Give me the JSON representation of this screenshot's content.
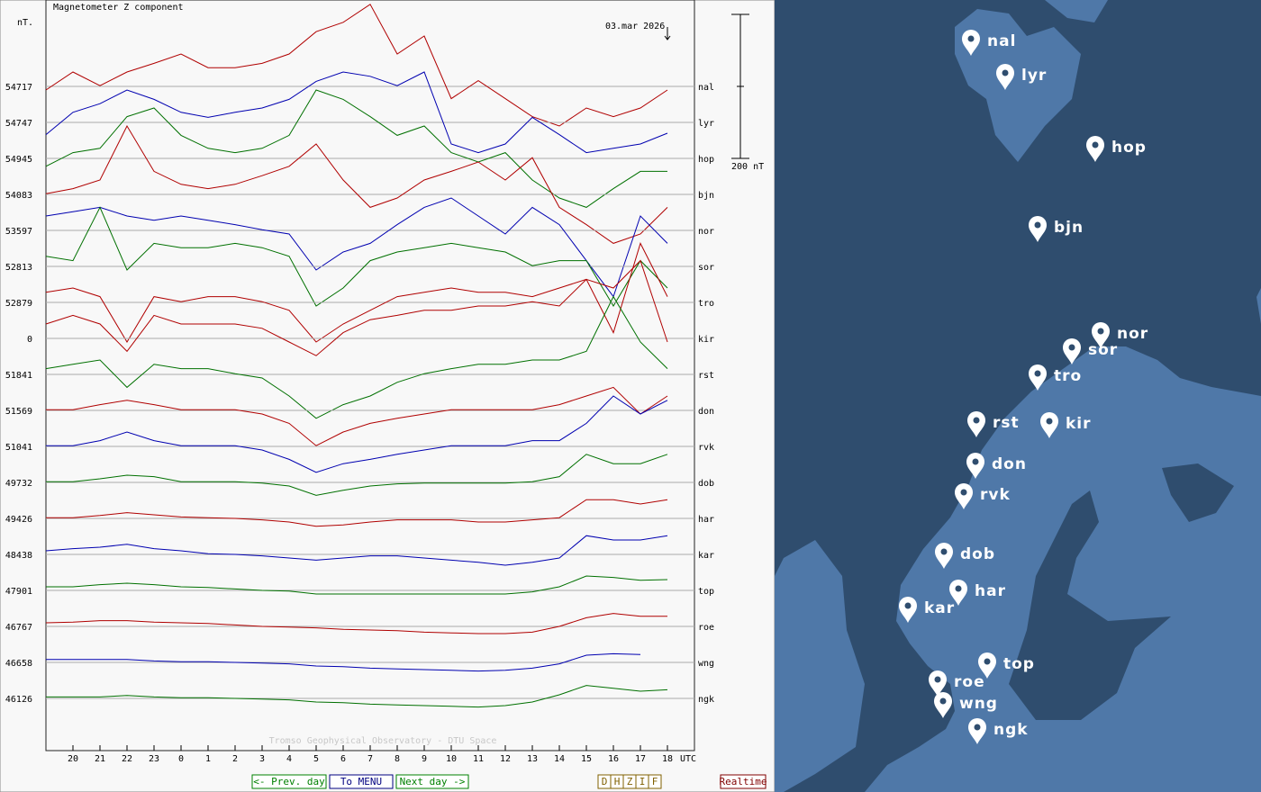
{
  "chart_data": {
    "type": "line",
    "title": "Magnetometer Z component",
    "unit": "nT.",
    "date": "03.mar 2026",
    "scale_bar": {
      "value": 200,
      "label": "200 nT"
    },
    "x_unit": "UTC",
    "watermark": "Tromso Geophysical Observatory - DTU Space",
    "xlim": [
      19,
      43
    ],
    "xticks": [
      20,
      21,
      22,
      23,
      {
        "value": 24,
        "label": "0"
      },
      {
        "value": 25,
        "label": "1"
      },
      {
        "value": 26,
        "label": "2"
      },
      {
        "value": 27,
        "label": "3"
      },
      {
        "value": 28,
        "label": "4"
      },
      {
        "value": 29,
        "label": "5"
      },
      {
        "value": 30,
        "label": "6"
      },
      {
        "value": 31,
        "label": "7"
      },
      {
        "value": 32,
        "label": "8"
      },
      {
        "value": 33,
        "label": "9"
      },
      {
        "value": 34,
        "label": "10"
      },
      {
        "value": 35,
        "label": "11"
      },
      {
        "value": 36,
        "label": "12"
      },
      {
        "value": 37,
        "label": "13"
      },
      {
        "value": 38,
        "label": "14"
      },
      {
        "value": 39,
        "label": "15"
      },
      {
        "value": 40,
        "label": "16"
      },
      {
        "value": 41,
        "label": "17"
      },
      {
        "value": 42,
        "label": "18"
      }
    ],
    "x": [
      19,
      20,
      21,
      22,
      23,
      24,
      25,
      26,
      27,
      28,
      29,
      30,
      31,
      32,
      33,
      34,
      35,
      36,
      37,
      38,
      39,
      40,
      41,
      42
    ],
    "series": [
      {
        "name": "nal",
        "baseline": "54717",
        "color": "#b00000",
        "values": [
          -5,
          20,
          1,
          20,
          32,
          45,
          26,
          26,
          32,
          45,
          76,
          89,
          114,
          45,
          70,
          -17,
          8,
          -17,
          -42,
          -55,
          -30,
          -42,
          -30,
          -5
        ]
      },
      {
        "name": "lyr",
        "baseline": "54747",
        "color": "#0000b0",
        "values": [
          -17,
          14,
          26,
          45,
          32,
          14,
          7,
          14,
          20,
          32,
          57,
          70,
          64,
          51,
          70,
          -30,
          -42,
          -30,
          7,
          -17,
          -42,
          -36,
          -30,
          -15
        ]
      },
      {
        "name": "hop",
        "baseline": "54945",
        "color": "#007000",
        "values": [
          -11,
          8,
          14,
          58,
          70,
          32,
          14,
          8,
          14,
          32,
          95,
          82,
          58,
          32,
          45,
          8,
          -5,
          8,
          -30,
          -55,
          -68,
          -42,
          -18,
          -18
        ]
      },
      {
        "name": "bjn",
        "baseline": "54083",
        "color": "#b00000",
        "values": [
          1,
          8,
          20,
          95,
          32,
          14,
          8,
          14,
          26,
          39,
          70,
          20,
          -18,
          -5,
          20,
          32,
          45,
          20,
          51,
          -18,
          -42,
          -68,
          -55,
          -18
        ]
      },
      {
        "name": "nor",
        "baseline": "53597",
        "color": "#0000b0",
        "values": [
          20,
          26,
          32,
          20,
          14,
          20,
          14,
          8,
          1,
          -5,
          -55,
          -30,
          -18,
          8,
          32,
          45,
          20,
          -5,
          32,
          8,
          -42,
          -92,
          20,
          -18
        ]
      },
      {
        "name": "sor",
        "baseline": "52813",
        "color": "#007000",
        "values": [
          14,
          8,
          82,
          -5,
          32,
          26,
          26,
          32,
          26,
          14,
          -55,
          -30,
          8,
          20,
          26,
          32,
          26,
          20,
          1,
          8,
          8,
          -55,
          8,
          -30
        ]
      },
      {
        "name": "tro",
        "baseline": "52879",
        "color": "#b00000",
        "values": [
          14,
          20,
          8,
          -55,
          8,
          1,
          8,
          8,
          1,
          -11,
          -55,
          -30,
          -11,
          8,
          14,
          20,
          14,
          14,
          8,
          20,
          32,
          -42,
          82,
          8
        ]
      },
      {
        "name": "kir",
        "baseline": "0",
        "color": "#b00000",
        "values": [
          20,
          32,
          20,
          -18,
          32,
          20,
          20,
          20,
          14,
          -5,
          -24,
          8,
          26,
          32,
          39,
          39,
          45,
          45,
          51,
          45,
          82,
          70,
          108,
          -5
        ]
      },
      {
        "name": "rst",
        "baseline": "51841",
        "color": "#007000",
        "values": [
          8,
          14,
          20,
          -18,
          14,
          8,
          8,
          1,
          -5,
          -30,
          -61,
          -42,
          -30,
          -11,
          1,
          8,
          14,
          14,
          20,
          20,
          32,
          108,
          45,
          8
        ]
      },
      {
        "name": "don",
        "baseline": "51569",
        "color": "#b00000",
        "values": [
          1,
          1,
          8,
          14,
          8,
          1,
          1,
          1,
          -5,
          -18,
          -49,
          -30,
          -18,
          -11,
          -5,
          1,
          1,
          1,
          1,
          8,
          20,
          32,
          -5,
          20
        ]
      },
      {
        "name": "rvk",
        "baseline": "51041",
        "color": "#0000b0",
        "values": [
          1,
          1,
          8,
          20,
          8,
          1,
          1,
          1,
          -5,
          -18,
          -36,
          -24,
          -18,
          -11,
          -5,
          1,
          1,
          1,
          8,
          8,
          32,
          70,
          45,
          64
        ]
      },
      {
        "name": "dob",
        "baseline": "49732",
        "color": "#007000",
        "values": [
          1,
          1,
          5,
          10,
          8,
          1,
          1,
          1,
          -1,
          -5,
          -18,
          -11,
          -5,
          -2,
          -1,
          -1,
          -1,
          -1,
          1,
          8,
          39,
          26,
          26,
          39
        ]
      },
      {
        "name": "har",
        "baseline": "49426",
        "color": "#b00000",
        "values": [
          1,
          1,
          4,
          8,
          5,
          2,
          1,
          0,
          -2,
          -5,
          -11,
          -9,
          -5,
          -2,
          -2,
          -2,
          -5,
          -5,
          -2,
          1,
          26,
          26,
          20,
          26
        ]
      },
      {
        "name": "kar",
        "baseline": "48438",
        "color": "#0000b0",
        "values": [
          5,
          8,
          10,
          14,
          8,
          5,
          1,
          0,
          -2,
          -5,
          -8,
          -5,
          -2,
          -2,
          -5,
          -8,
          -11,
          -15,
          -11,
          -5,
          26,
          20,
          20,
          26
        ]
      },
      {
        "name": "top",
        "baseline": "47901",
        "color": "#007000",
        "values": [
          5,
          5,
          8,
          10,
          8,
          5,
          4,
          2,
          0,
          -1,
          -5,
          -5,
          -5,
          -5,
          -5,
          -5,
          -5,
          -5,
          -2,
          5,
          20,
          18,
          14,
          15
        ]
      },
      {
        "name": "roe",
        "baseline": "46767",
        "color": "#b00000",
        "values": [
          5,
          6,
          8,
          8,
          6,
          5,
          4,
          2,
          0,
          -1,
          -2,
          -4,
          -5,
          -6,
          -8,
          -9,
          -10,
          -10,
          -8,
          0,
          12,
          18,
          14,
          14
        ]
      },
      {
        "name": "wng",
        "baseline": "46658",
        "color": "#0000b0",
        "values": [
          4,
          4,
          4,
          4,
          2,
          1,
          1,
          0,
          -1,
          -2,
          -5,
          -6,
          -8,
          -9,
          -10,
          -11,
          -12,
          -11,
          -8,
          -2,
          10,
          12,
          11,
          null
        ]
      },
      {
        "name": "ngk",
        "baseline": "46126",
        "color": "#007000",
        "values": [
          2,
          2,
          2,
          4,
          2,
          1,
          1,
          0,
          -1,
          -2,
          -5,
          -6,
          -8,
          -9,
          -10,
          -11,
          -12,
          -10,
          -5,
          5,
          18,
          14,
          10,
          12
        ]
      }
    ]
  },
  "ui": {
    "nav": [
      "<- Prev. day",
      "To MENU",
      "Next day ->"
    ],
    "components": [
      "D",
      "H",
      "Z",
      "I",
      "F"
    ],
    "realtime": "Realtime"
  }
}
